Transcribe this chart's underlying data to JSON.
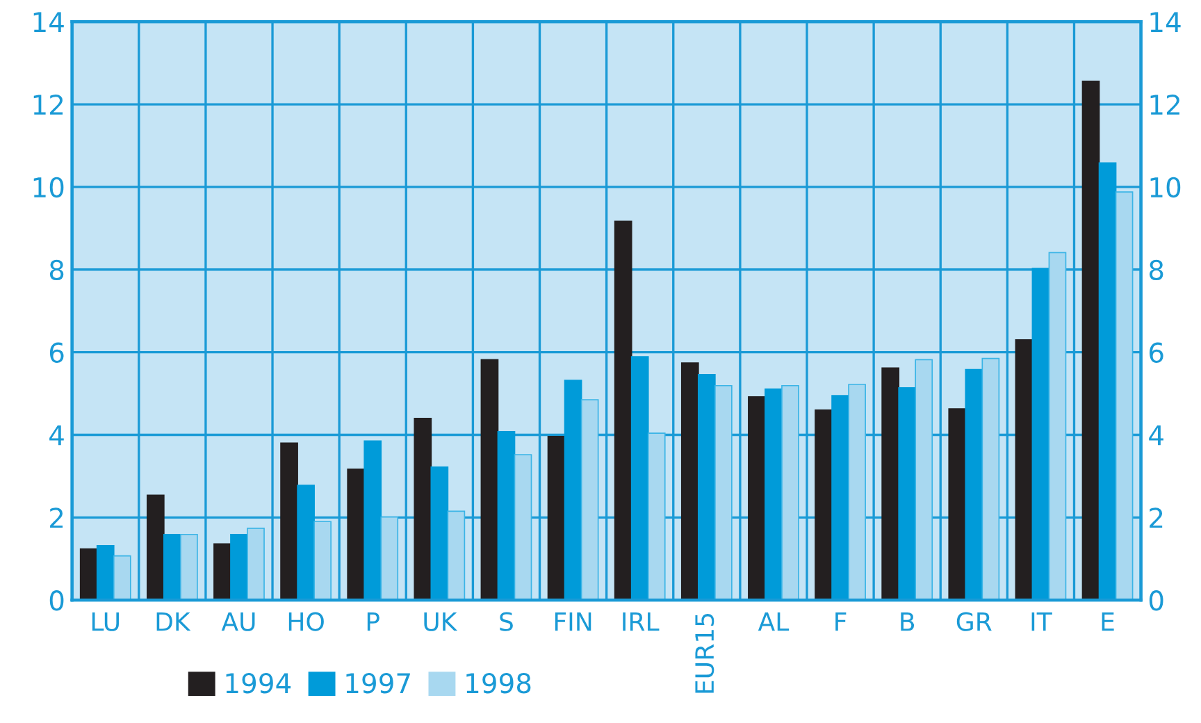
{
  "chart_data": {
    "type": "bar",
    "categories": [
      "LU",
      "DK",
      "AU",
      "HO",
      "P",
      "UK",
      "S",
      "FIN",
      "IRL",
      "EUR15",
      "AL",
      "F",
      "B",
      "GR",
      "IT",
      "E"
    ],
    "series": [
      {
        "name": "1994",
        "color": "#231f20",
        "values": [
          1.24,
          2.54,
          1.36,
          3.8,
          3.17,
          4.4,
          5.82,
          3.96,
          9.17,
          5.74,
          4.92,
          4.6,
          5.62,
          4.63,
          6.3,
          12.56
        ]
      },
      {
        "name": "1997",
        "color": "#009bd9",
        "values": [
          1.32,
          1.59,
          1.59,
          2.78,
          3.85,
          3.22,
          4.08,
          5.32,
          5.89,
          5.46,
          5.11,
          4.95,
          5.14,
          5.58,
          8.03,
          10.58
        ]
      },
      {
        "name": "1998",
        "color": "#a8d8f0",
        "values": [
          1.07,
          1.59,
          1.74,
          1.9,
          2.01,
          2.15,
          3.52,
          4.85,
          4.04,
          5.19,
          5.19,
          5.22,
          5.82,
          5.85,
          8.41,
          9.88
        ]
      }
    ],
    "ylim": [
      0,
      14
    ],
    "yticks": [
      0,
      2,
      4,
      6,
      8,
      10,
      12,
      14
    ],
    "y2lim": [
      0,
      14
    ],
    "y2ticks": [
      0,
      2,
      4,
      6,
      8,
      10,
      12,
      14
    ],
    "grid": true,
    "legend": "bottom"
  }
}
